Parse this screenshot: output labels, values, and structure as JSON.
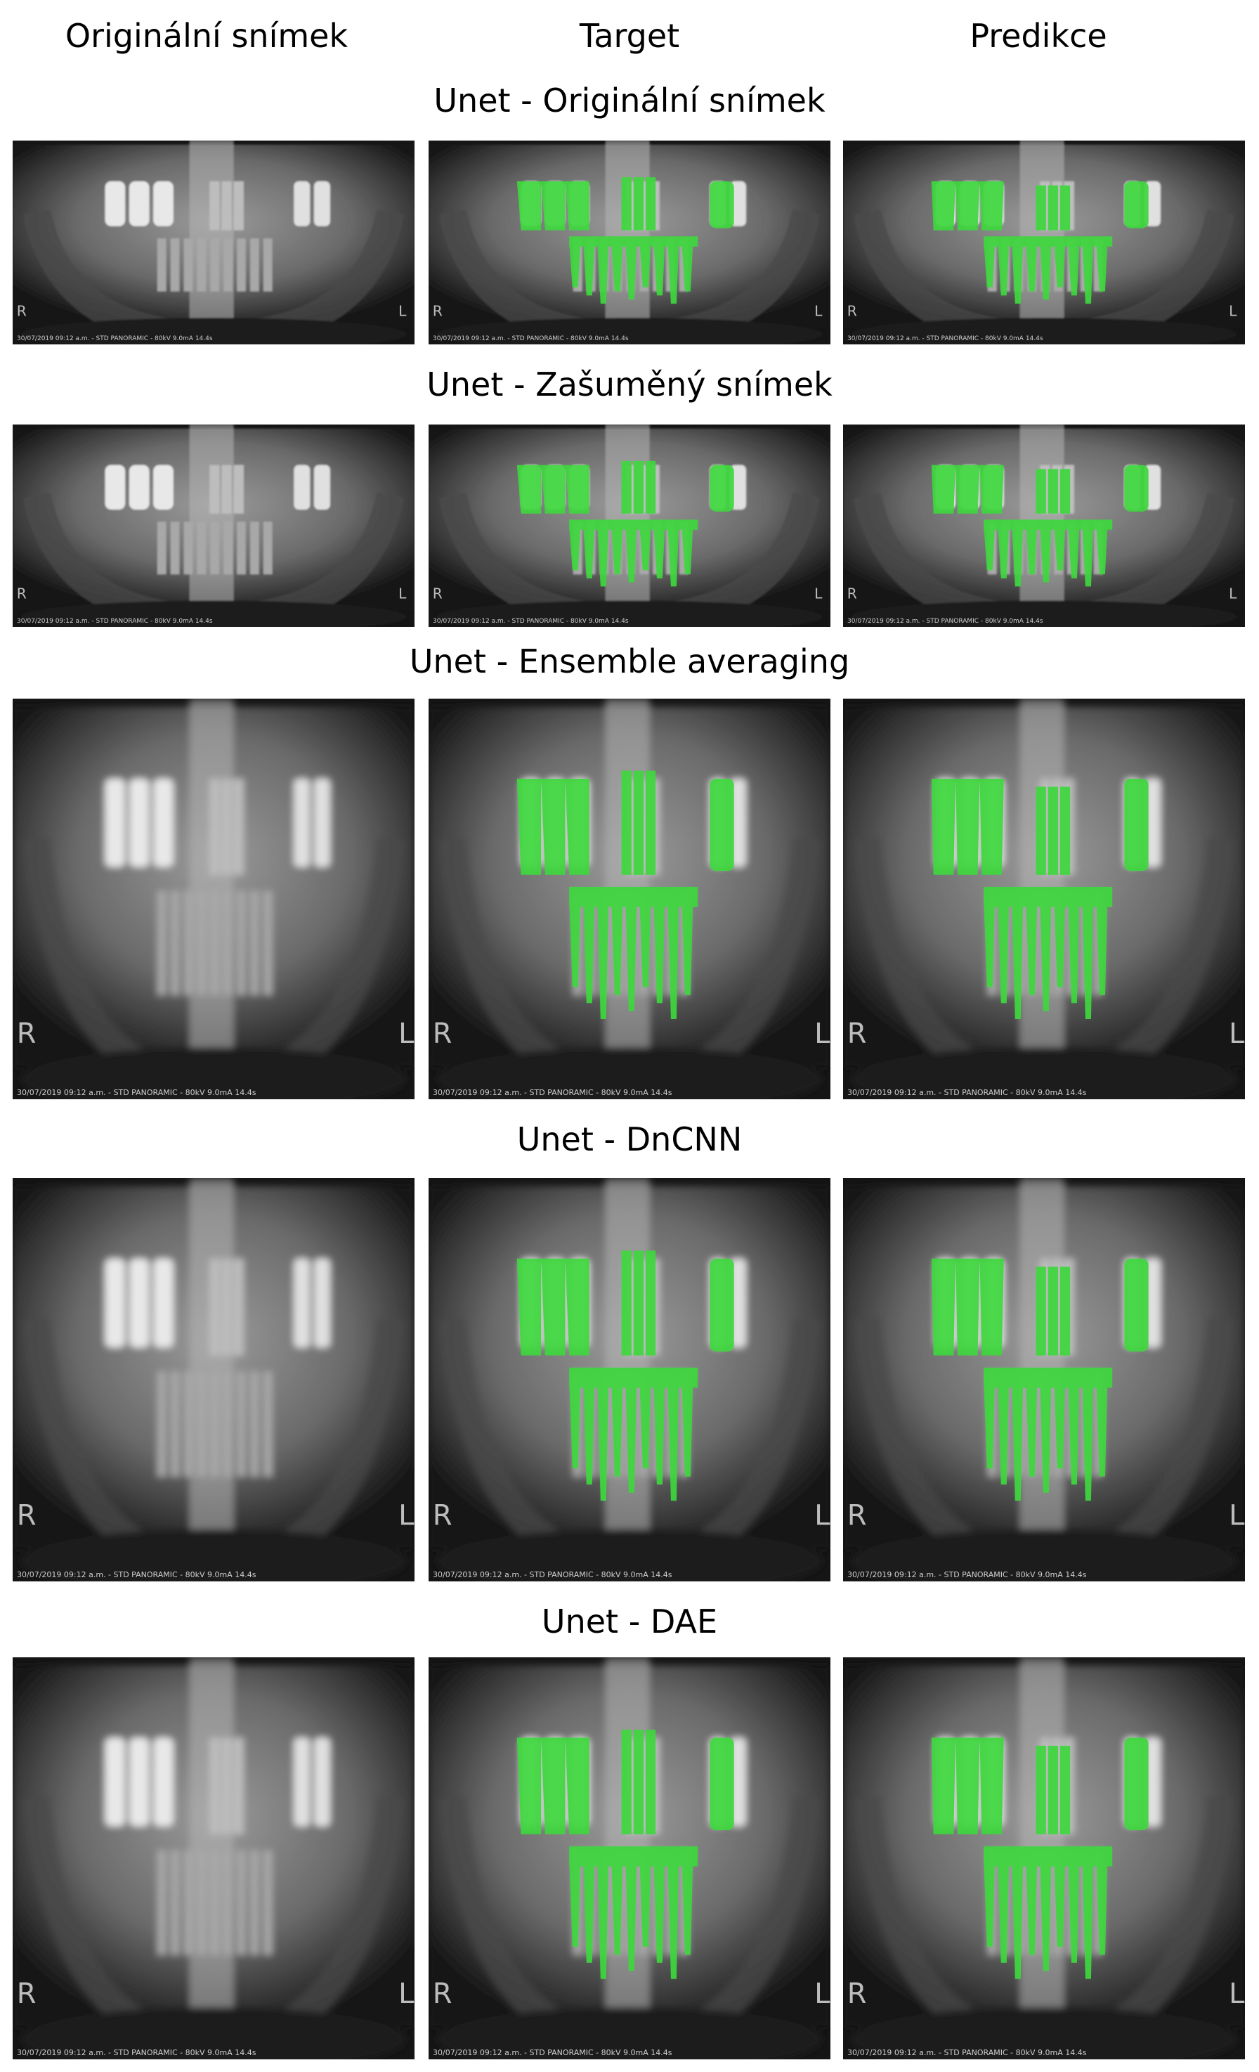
{
  "columns": [
    "Originální snímek",
    "Target",
    "Predikce"
  ],
  "rows": [
    {
      "title": "Unet - Originální snímek",
      "footer": "30/07/2019 09:12 a.m. - STD PANORAMIC - 80kV 9.0mA 14.4s"
    },
    {
      "title": "Unet - Zašuměný snímek",
      "footer": "30/07/2019 09:12 a.m. - STD PANORAMIC - 80kV 9.0mA 14.4s"
    },
    {
      "title": "Unet - Ensemble averaging",
      "footer": "30/07/2019 09:12 a.m. - STD PANORAMIC - 80kV 9.0mA 14.4s"
    },
    {
      "title": "Unet - DnCNN",
      "footer": "30/07/2019 09:12 a.m. - STD PANORAMIC - 80kV 9.0mA 14.4s"
    },
    {
      "title": "Unet - DAE",
      "footer": "30/07/2019 09:12 a.m. - STD PANORAMIC - 80kV 9.0mA 14.4s"
    }
  ],
  "colors": {
    "mask": "#3ed83e",
    "xray_dark": "#151515",
    "xray_light": "#cfcfcf"
  },
  "side_markers": {
    "right": "R",
    "left": "L"
  }
}
